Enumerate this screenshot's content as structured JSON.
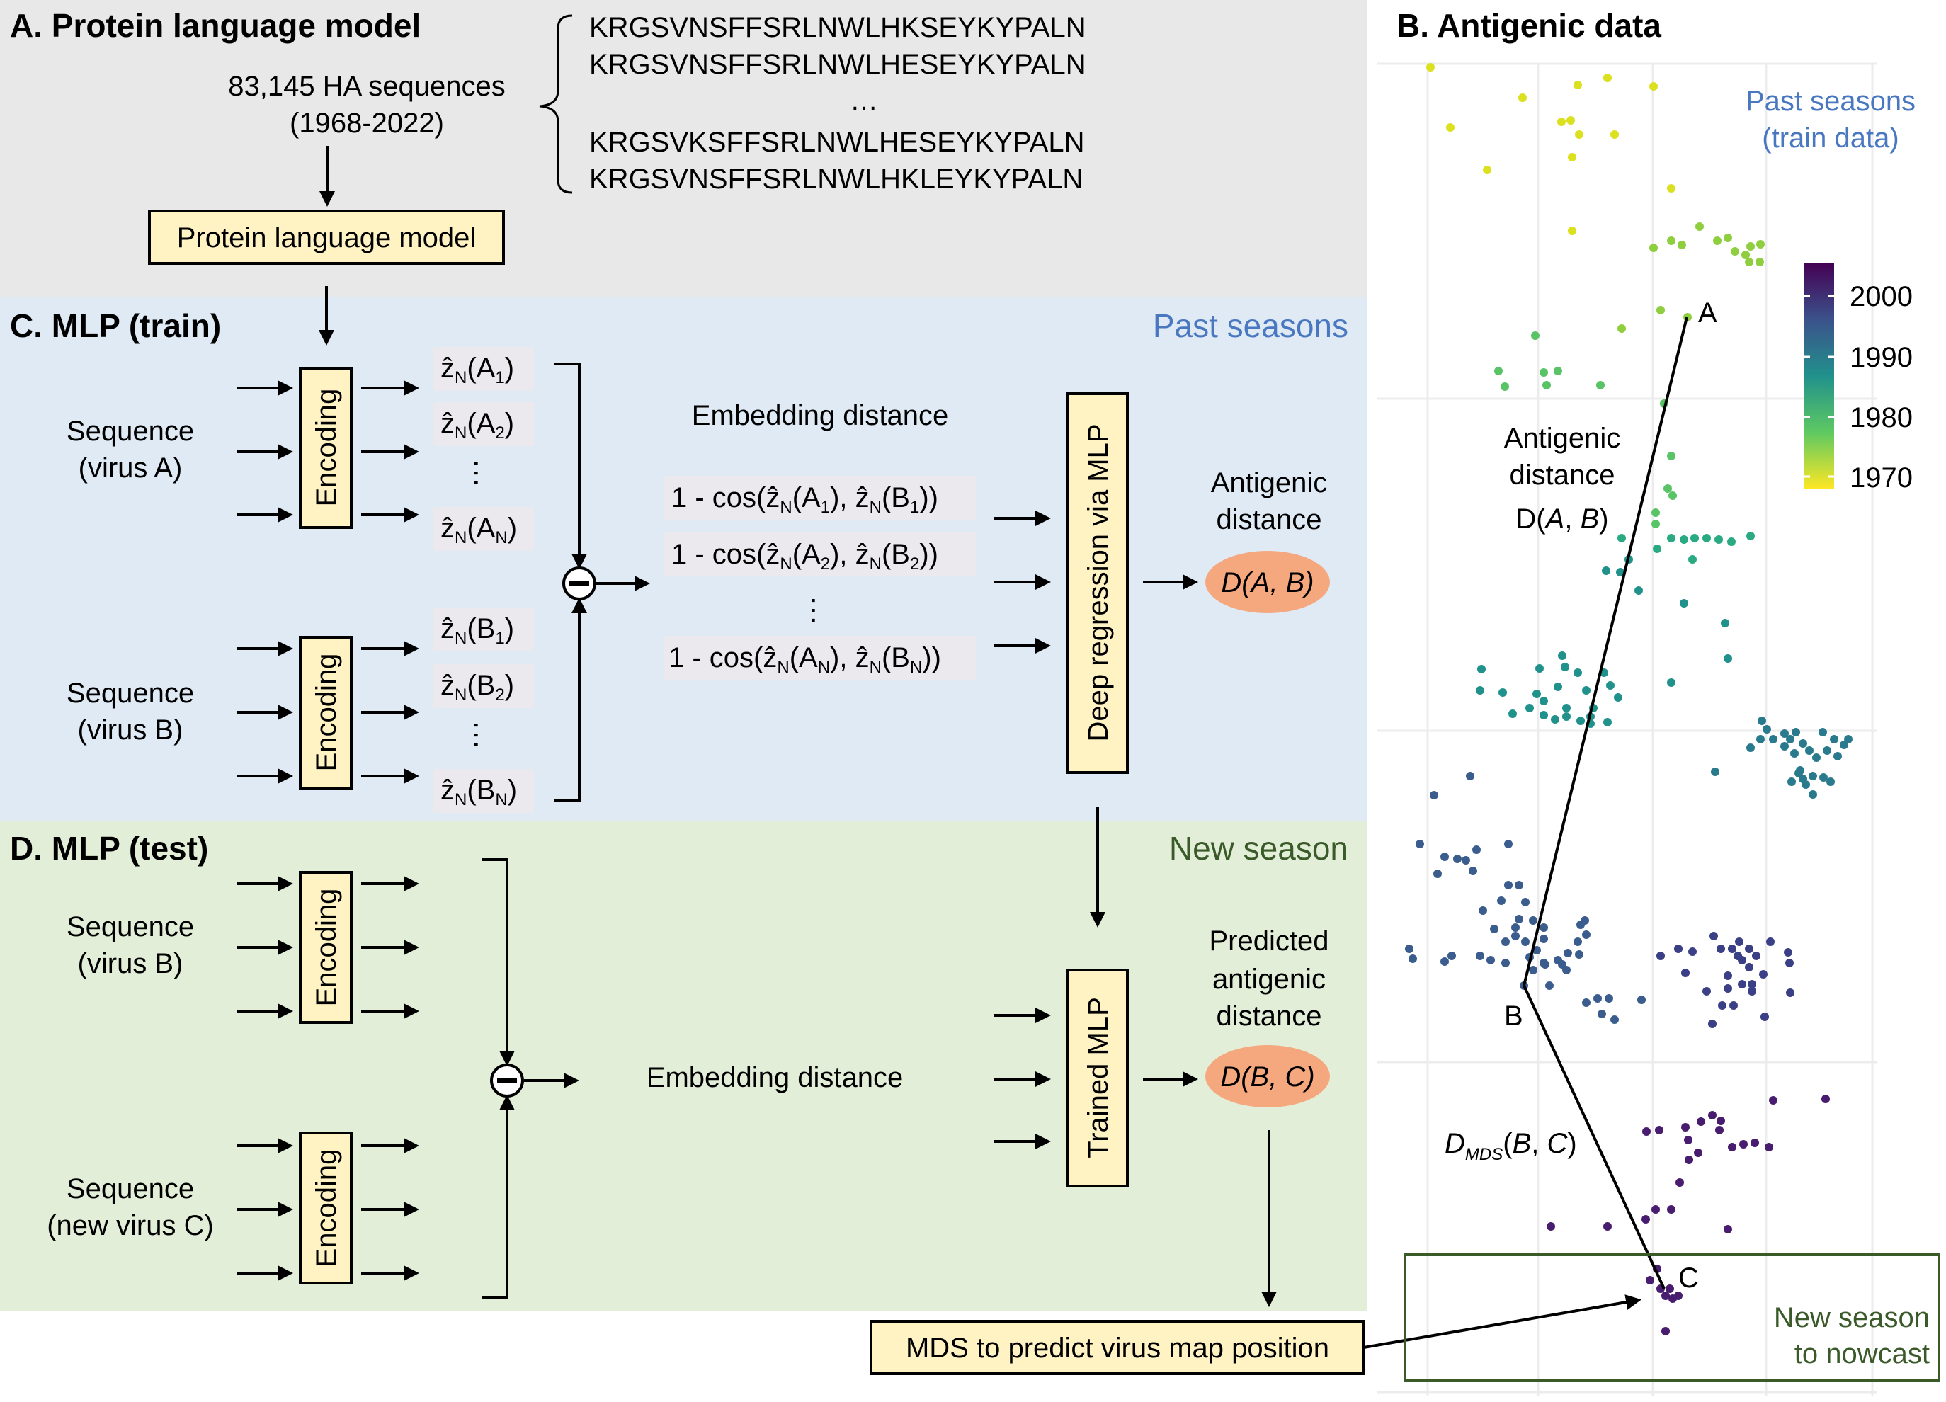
{
  "panel_a": {
    "title": "A. Protein language model",
    "count": "83,145 HA sequences",
    "years": "(1968-2022)",
    "seqs": [
      "KRGSVNSFFSRLNWLHKSEYKYPALN",
      "KRGSVNSFFSRLNWLHESEYKYPALN",
      "…",
      "KRGSVKSFFSRLNWLHESEYKYPALN",
      "KRGSVNSFFSRLNWLHKLEYKYPALN"
    ],
    "model_box": "Protein language model"
  },
  "panel_c": {
    "title": "C. MLP (train)",
    "tag": "Past seasons",
    "seqA": [
      "Sequence",
      "(virus A)"
    ],
    "seqB": [
      "Sequence",
      "(virus B)"
    ],
    "encoding": "Encoding",
    "embA": [
      "ẑ",
      "N",
      "(A",
      "1",
      ")",
      "2",
      "N"
    ],
    "embed_title": "Embedding distance",
    "dist_rows": [
      [
        "1 - cos(ẑ",
        "N",
        "(A",
        "1",
        "), ẑ",
        "N",
        "(B",
        "1",
        "))"
      ],
      [
        "1 - cos(ẑ",
        "N",
        "(A",
        "2",
        "), ẑ",
        "N",
        "(B",
        "2",
        "))"
      ],
      [
        "1 - cos(ẑ",
        "N",
        "(A",
        "N",
        "), ẑ",
        "N",
        "(B",
        "N",
        "))"
      ]
    ],
    "regression": "Deep regression via MLP",
    "out_label": [
      "Antigenic",
      "distance"
    ],
    "out_pill": [
      "D(",
      "A",
      ", ",
      "B",
      ")"
    ]
  },
  "panel_d": {
    "title": "D. MLP (test)",
    "tag": "New season",
    "seqB": [
      "Sequence",
      "(virus B)"
    ],
    "seqC": [
      "Sequence",
      "(new virus C)"
    ],
    "encoding": "Encoding",
    "embed_title": "Embedding distance",
    "trained": "Trained MLP",
    "out_label": [
      "Predicted",
      "antigenic",
      "distance"
    ],
    "out_pill": [
      "D(",
      "B",
      ", ",
      "C",
      ")"
    ],
    "mds_box": "MDS to predict virus map position"
  },
  "panel_b": {
    "title": "B. Antigenic data",
    "past_label": [
      "Past seasons",
      "(train data)"
    ],
    "colorbar_ticks": [
      "2000",
      "1990",
      "1980",
      "1970"
    ],
    "point_A": "A",
    "point_B": "B",
    "point_C": "C",
    "ad_label": [
      "Antigenic",
      "distance",
      "D(",
      "A",
      ", ",
      "B",
      ")"
    ],
    "dmds_label": [
      "D",
      "MDS",
      "(",
      "B",
      ", ",
      "C",
      ")"
    ],
    "new_label": [
      "New season",
      "to nowcast"
    ]
  },
  "colors": {
    "panel_a_bg": "#e8e8e8",
    "panel_c_bg": "#dfeaf5",
    "panel_d_bg": "#e3eed9",
    "box_fill": "#fff3c4",
    "pill_fill": "#f5a87e",
    "past_blue": "#4a78c0",
    "new_green": "#3a5a2a",
    "emb_fill": "#ebe8ee",
    "viridis": [
      "#440154",
      "#3b528b",
      "#21918c",
      "#5ec962",
      "#fde725"
    ]
  }
}
